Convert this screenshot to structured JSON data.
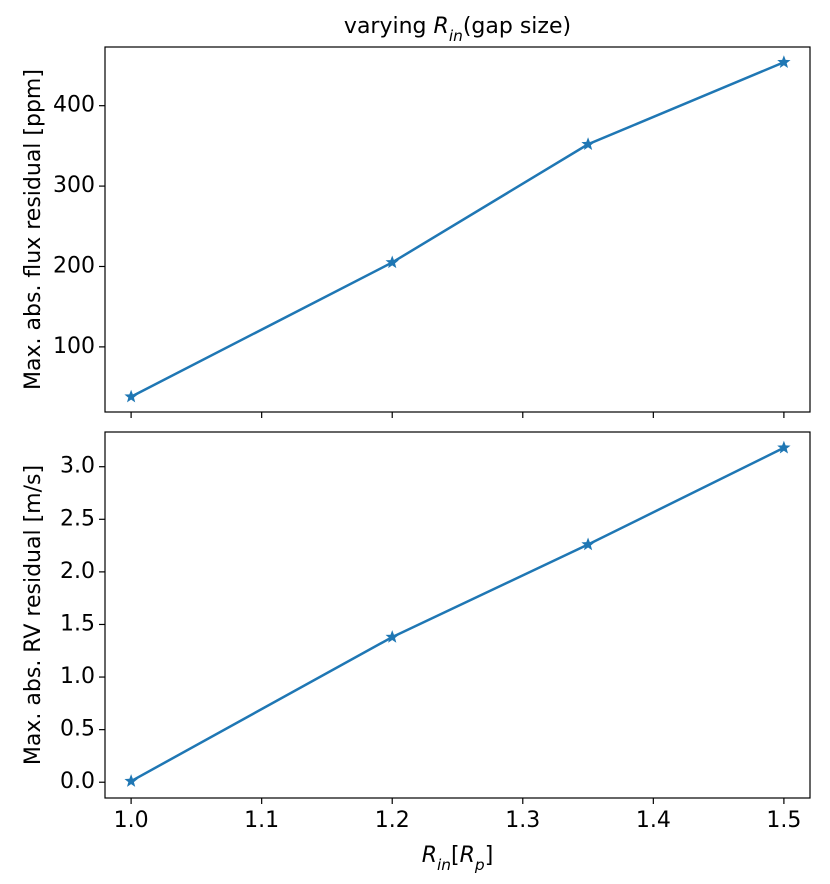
{
  "chart_data": [
    {
      "type": "line",
      "title": [
        {
          "text": "varying "
        },
        {
          "text": "R",
          "italic": true
        },
        {
          "text": "in",
          "italic": true,
          "sub": true
        },
        {
          "text": "(gap size)"
        }
      ],
      "ylabel": "Max. abs. flux residual [ppm]",
      "x": [
        1.0,
        1.2,
        1.35,
        1.5
      ],
      "series": [
        {
          "color": "#1f77b4",
          "marker": "star",
          "values": [
            38,
            205,
            352,
            454
          ]
        }
      ],
      "xlim": [
        0.98,
        1.52
      ],
      "xticks": [
        1.0,
        1.1,
        1.2,
        1.3,
        1.4,
        1.5
      ],
      "xtick_labels": false,
      "ylim": [
        19,
        473
      ],
      "yticks": [
        100,
        200,
        300,
        400
      ]
    },
    {
      "type": "line",
      "ylabel": "Max. abs. RV residual [m/s]",
      "xlabel": [
        {
          "text": "R",
          "italic": true
        },
        {
          "text": "in",
          "italic": true,
          "sub": true
        },
        {
          "text": "["
        },
        {
          "text": "R",
          "italic": true
        },
        {
          "text": "p",
          "italic": true,
          "sub": true
        },
        {
          "text": "]"
        }
      ],
      "x": [
        1.0,
        1.2,
        1.35,
        1.5
      ],
      "series": [
        {
          "color": "#1f77b4",
          "marker": "star",
          "values": [
            0.01,
            1.38,
            2.26,
            3.18
          ]
        }
      ],
      "xlim": [
        0.98,
        1.52
      ],
      "xticks": [
        {
          "value": 1.0,
          "label": "1.0"
        },
        1.1,
        1.2,
        1.3,
        1.4,
        1.5
      ],
      "xtick_labels": true,
      "ylim": [
        -0.15,
        3.33
      ],
      "yticks": [
        {
          "value": 0,
          "label": "0.0"
        },
        0.5,
        {
          "value": 1,
          "label": "1.0"
        },
        1.5,
        {
          "value": 2,
          "label": "2.0"
        },
        2.5,
        {
          "value": 3,
          "label": "3.0"
        }
      ]
    }
  ]
}
